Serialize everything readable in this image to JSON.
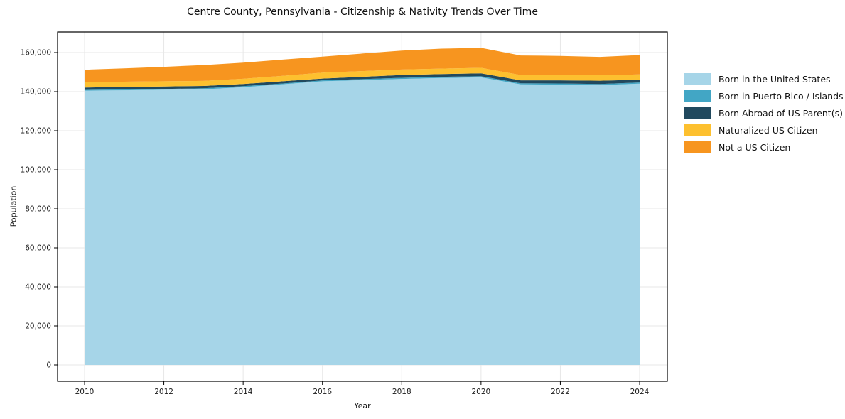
{
  "chart_data": {
    "type": "area",
    "stacked": true,
    "title": "Centre County, Pennsylvania - Citizenship & Nativity Trends Over Time",
    "xlabel": "Year",
    "ylabel": "Population",
    "x": [
      2010,
      2011,
      2012,
      2013,
      2014,
      2015,
      2016,
      2017,
      2018,
      2019,
      2020,
      2021,
      2022,
      2023,
      2024
    ],
    "series": [
      {
        "name": "Born in the United States",
        "color": "#a6d5e8",
        "values": [
          140500,
          140700,
          141000,
          141200,
          142300,
          143800,
          145300,
          145900,
          146500,
          147000,
          147300,
          143700,
          143600,
          143300,
          144100
        ]
      },
      {
        "name": "Born in Puerto Rico / Islands",
        "color": "#42a6c5",
        "values": [
          400,
          450,
          400,
          500,
          500,
          400,
          500,
          500,
          600,
          600,
          600,
          600,
          600,
          600,
          600
        ]
      },
      {
        "name": "Born Abroad of US Parent(s)",
        "color": "#21495e",
        "values": [
          1200,
          1250,
          1250,
          1200,
          1100,
          1100,
          900,
          1200,
          1400,
          1400,
          1500,
          1500,
          1600,
          1700,
          1400
        ]
      },
      {
        "name": "Naturalized US Citizen",
        "color": "#fdc02f",
        "values": [
          2800,
          2700,
          2650,
          2600,
          2700,
          2800,
          3000,
          2900,
          2800,
          2800,
          2800,
          2700,
          2800,
          2800,
          2700
        ]
      },
      {
        "name": "Not a US Citizen",
        "color": "#f7951f",
        "values": [
          6300,
          6800,
          7400,
          8100,
          8200,
          8300,
          8200,
          9000,
          9700,
          10200,
          10200,
          10000,
          9700,
          9400,
          9900
        ]
      }
    ],
    "xticks": [
      2010,
      2012,
      2014,
      2016,
      2018,
      2020,
      2022,
      2024
    ],
    "xtick_labels": [
      "2010",
      "2012",
      "2014",
      "2016",
      "2018",
      "2020",
      "2022",
      "2024"
    ],
    "yticks": [
      0,
      20000,
      40000,
      60000,
      80000,
      100000,
      120000,
      140000,
      160000
    ],
    "ytick_labels": [
      "0",
      "20,000",
      "40,000",
      "60,000",
      "80,000",
      "100,000",
      "120,000",
      "140,000",
      "160,000"
    ],
    "xlim": [
      2010,
      2024
    ],
    "ylim": [
      0,
      160000
    ],
    "grid": true,
    "legend_position": "right"
  },
  "style_colors": {
    "grid": "#e7e7e7",
    "spine": "#000000",
    "tick_text": "#1a1a1a",
    "background": "#ffffff"
  }
}
